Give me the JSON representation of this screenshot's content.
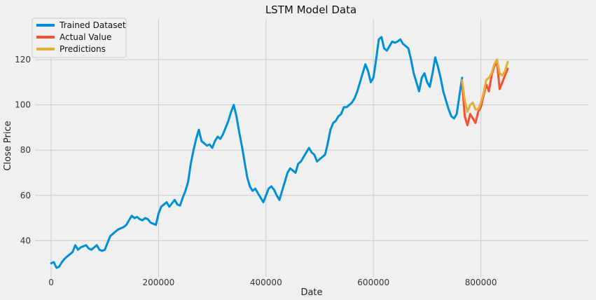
{
  "chart_data": {
    "type": "line",
    "title": "LSTM Model Data",
    "xlabel": "Date",
    "ylabel": "Close Price",
    "xlim": [
      -30000,
      1000000
    ],
    "ylim": [
      24,
      138
    ],
    "xticks": [
      0,
      200000,
      400000,
      600000,
      800000
    ],
    "yticks": [
      40,
      60,
      80,
      100,
      120
    ],
    "grid": true,
    "legend_position": "top-left",
    "series": [
      {
        "name": "Trained Dataset",
        "color": "#008fd5",
        "x": [
          0,
          5000,
          10000,
          15000,
          20000,
          25000,
          30000,
          35000,
          40000,
          45000,
          50000,
          55000,
          60000,
          65000,
          70000,
          75000,
          80000,
          85000,
          90000,
          95000,
          100000,
          105000,
          110000,
          115000,
          120000,
          125000,
          130000,
          135000,
          140000,
          145000,
          150000,
          155000,
          160000,
          165000,
          170000,
          175000,
          180000,
          185000,
          190000,
          195000,
          200000,
          205000,
          210000,
          215000,
          220000,
          225000,
          230000,
          235000,
          240000,
          245000,
          250000,
          255000,
          260000,
          265000,
          270000,
          275000,
          280000,
          285000,
          290000,
          295000,
          300000,
          305000,
          310000,
          315000,
          320000,
          325000,
          330000,
          335000,
          340000,
          345000,
          350000,
          355000,
          360000,
          365000,
          370000,
          375000,
          380000,
          385000,
          390000,
          395000,
          400000,
          405000,
          410000,
          415000,
          420000,
          425000,
          430000,
          435000,
          440000,
          445000,
          450000,
          455000,
          460000,
          465000,
          470000,
          475000,
          480000,
          485000,
          490000,
          495000,
          500000,
          505000,
          510000,
          515000,
          520000,
          525000,
          530000,
          535000,
          540000,
          545000,
          550000,
          555000,
          560000,
          565000,
          570000,
          575000,
          580000,
          585000,
          590000,
          595000,
          600000,
          605000,
          610000,
          615000,
          620000,
          625000,
          630000,
          635000,
          640000,
          645000,
          650000,
          655000,
          660000,
          665000,
          670000,
          675000,
          680000,
          685000,
          690000,
          695000,
          700000,
          705000,
          710000,
          715000,
          720000,
          725000,
          730000,
          735000,
          740000,
          745000,
          750000,
          755000,
          760000,
          765000
        ],
        "y": [
          30,
          30.5,
          28,
          28.5,
          30.5,
          32,
          33,
          34,
          35,
          38,
          36,
          37,
          37.5,
          38,
          36.5,
          36,
          37,
          38,
          36,
          35.5,
          36,
          39,
          42,
          43,
          44,
          45,
          45.5,
          46,
          47,
          49,
          51,
          50,
          50.5,
          49.5,
          49,
          50,
          49.5,
          48,
          47.5,
          47,
          52,
          55,
          56,
          57,
          55,
          56.5,
          58,
          56,
          55.5,
          59,
          62,
          66,
          74,
          80,
          85,
          89,
          84,
          83,
          82,
          82.5,
          81,
          84,
          86,
          85,
          87,
          90,
          93,
          97,
          100,
          95,
          88,
          82,
          75,
          68,
          64,
          62,
          63,
          61,
          59,
          57,
          60,
          63,
          64,
          62.5,
          60,
          58,
          62,
          66,
          70,
          72,
          71,
          70,
          74,
          75,
          77,
          79,
          81,
          79,
          78,
          75,
          76,
          77,
          78,
          83,
          89,
          92,
          93,
          95,
          96,
          99,
          99,
          100,
          101,
          103,
          106,
          110,
          114,
          118,
          115,
          110,
          112,
          120,
          129,
          130,
          125,
          124,
          126,
          128,
          127.5,
          128,
          129,
          127,
          126,
          125,
          120,
          114,
          110,
          106,
          112,
          114,
          110,
          108,
          114,
          121,
          117,
          112,
          106,
          102,
          98,
          95,
          94,
          96,
          104,
          112
        ]
      },
      {
        "name": "Actual Value",
        "color": "#fc4f30",
        "x": [
          765000,
          770000,
          775000,
          780000,
          785000,
          790000,
          795000,
          800000,
          805000,
          810000,
          815000,
          820000,
          825000,
          830000,
          835000,
          840000,
          845000,
          850000
        ],
        "y": [
          110,
          95,
          91,
          96,
          94,
          92,
          97,
          99,
          104,
          109,
          106,
          113,
          117,
          119,
          107,
          110,
          113,
          116
        ]
      },
      {
        "name": "Predictions",
        "color": "#e5ae38",
        "x": [
          765000,
          770000,
          775000,
          780000,
          785000,
          790000,
          795000,
          800000,
          805000,
          810000,
          815000,
          820000,
          825000,
          830000,
          835000,
          840000,
          845000,
          850000
        ],
        "y": [
          111,
          102,
          97,
          100,
          101,
          98,
          98,
          101,
          105,
          111,
          112,
          114,
          118,
          120,
          114,
          113,
          115,
          119
        ]
      }
    ]
  }
}
